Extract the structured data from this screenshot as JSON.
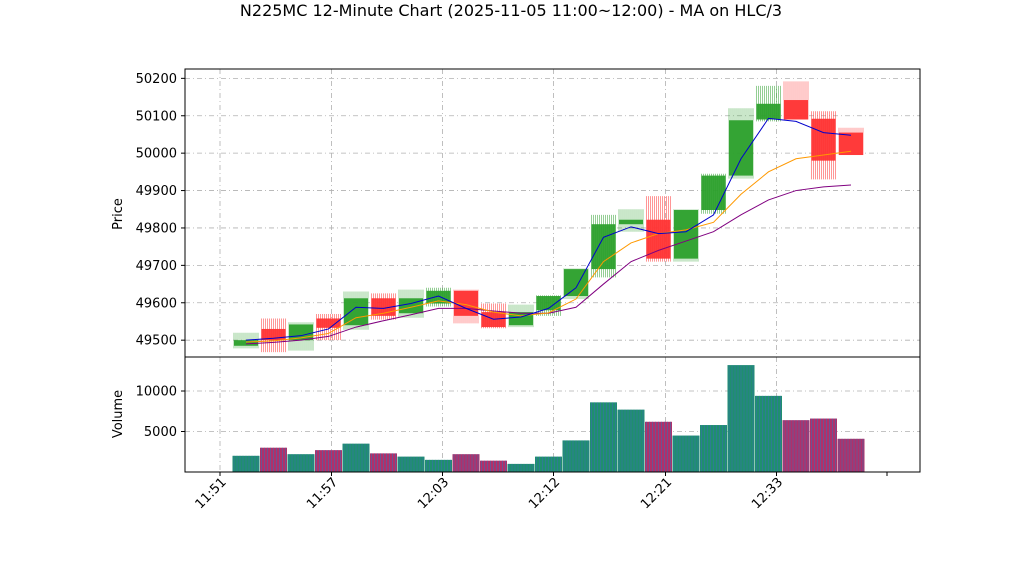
{
  "chart_data": {
    "type": "candlestick-volume",
    "title": "N225MC 12-Minute Chart (2025-11-05 11:00~12:00) - MA on HLC/3",
    "price_ylabel": "Price",
    "volume_ylabel": "Volume",
    "price_ylim": [
      49455,
      50225
    ],
    "price_ticks": [
      49500,
      49600,
      49700,
      49800,
      49900,
      50000,
      50100,
      50200
    ],
    "volume_ylim": [
      0,
      14200
    ],
    "volume_ticks": [
      5000,
      10000
    ],
    "x_ticks": [
      "11:51",
      "11:57",
      "12:03",
      "12:12",
      "12:21",
      "12:33"
    ],
    "x_tick_index": [
      0,
      6,
      12,
      18,
      24,
      30
    ],
    "grid": true,
    "colors": {
      "up": "#2ca02c",
      "down": "#ff3333",
      "ma1": "#0000cc",
      "ma2": "#ff9900",
      "ma3": "#800080",
      "vol_up": "#1f8f6e",
      "vol_down": "#b0306a",
      "vol_stripe": "#3a6fb0"
    },
    "candles": [
      {
        "open": 49485,
        "high": 49520,
        "low": 49478,
        "close": 49500
      },
      {
        "open": 49530,
        "high": 49558,
        "low": 49468,
        "close": 49500
      },
      {
        "open": 49500,
        "high": 49548,
        "low": 49472,
        "close": 49542
      },
      {
        "open": 49558,
        "high": 49570,
        "low": 49500,
        "close": 49533
      },
      {
        "open": 49540,
        "high": 49630,
        "low": 49528,
        "close": 49612
      },
      {
        "open": 49612,
        "high": 49625,
        "low": 49555,
        "close": 49565
      },
      {
        "open": 49572,
        "high": 49635,
        "low": 49560,
        "close": 49612
      },
      {
        "open": 49598,
        "high": 49640,
        "low": 49590,
        "close": 49632
      },
      {
        "open": 49632,
        "high": 49635,
        "low": 49545,
        "close": 49565
      },
      {
        "open": 49575,
        "high": 49598,
        "low": 49532,
        "close": 49535
      },
      {
        "open": 49540,
        "high": 49595,
        "low": 49535,
        "close": 49575
      },
      {
        "open": 49580,
        "high": 49620,
        "low": 49565,
        "close": 49618
      },
      {
        "open": 49618,
        "high": 49692,
        "low": 49610,
        "close": 49690
      },
      {
        "open": 49690,
        "high": 49835,
        "low": 49668,
        "close": 49810
      },
      {
        "open": 49810,
        "high": 49850,
        "low": 49790,
        "close": 49822
      },
      {
        "open": 49822,
        "high": 49885,
        "low": 49710,
        "close": 49718
      },
      {
        "open": 49718,
        "high": 49850,
        "low": 49710,
        "close": 49848
      },
      {
        "open": 49848,
        "high": 49945,
        "low": 49838,
        "close": 49940
      },
      {
        "open": 49940,
        "high": 50120,
        "low": 49932,
        "close": 50088
      },
      {
        "open": 50090,
        "high": 50180,
        "low": 50085,
        "close": 50132
      },
      {
        "open": 50142,
        "high": 50192,
        "low": 50090,
        "close": 50090
      },
      {
        "open": 50092,
        "high": 50112,
        "low": 49930,
        "close": 49980
      },
      {
        "open": 50055,
        "high": 50068,
        "low": 49995,
        "close": 49995
      }
    ],
    "volume": [
      2000,
      3000,
      2200,
      2700,
      3500,
      2300,
      1900,
      1500,
      2200,
      1400,
      1000,
      1900,
      3900,
      8600,
      7700,
      6200,
      4500,
      5800,
      13200,
      9400,
      6400,
      6600,
      4100
    ],
    "ma_short": [
      49500,
      49505,
      49512,
      49530,
      49588,
      49585,
      49598,
      49618,
      49585,
      49556,
      49562,
      49585,
      49640,
      49775,
      49803,
      49785,
      49790,
      49835,
      49985,
      50093,
      50085,
      50055,
      50048
    ],
    "ma_mid": [
      49495,
      49498,
      49506,
      49518,
      49560,
      49572,
      49588,
      49605,
      49595,
      49575,
      49565,
      49573,
      49610,
      49710,
      49760,
      49785,
      49795,
      49815,
      49890,
      49950,
      49985,
      49995,
      50005
    ],
    "ma_long": [
      49490,
      49494,
      49500,
      49510,
      49535,
      49552,
      49568,
      49585,
      49585,
      49578,
      49572,
      49572,
      49588,
      49650,
      49710,
      49740,
      49765,
      49790,
      49835,
      49875,
      49900,
      49910,
      49915
    ]
  }
}
